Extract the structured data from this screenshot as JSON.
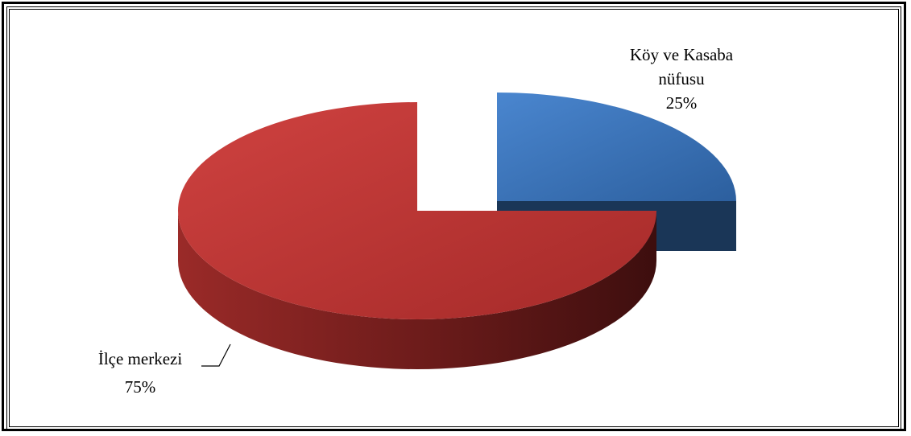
{
  "chart_data": {
    "type": "pie",
    "style": "3d-exploded",
    "title": "",
    "slices": [
      {
        "label": "Köy ve Kasaba nüfusu",
        "label_lines": [
          "Köy ve Kasaba",
          "nüfusu"
        ],
        "value": 25,
        "percent_label": "25%",
        "color": "#3a72b8"
      },
      {
        "label": "İlçe merkezi",
        "label_lines": [
          "İlçe merkezi"
        ],
        "value": 75,
        "percent_label": "75%",
        "color": "#b3302f"
      }
    ]
  }
}
